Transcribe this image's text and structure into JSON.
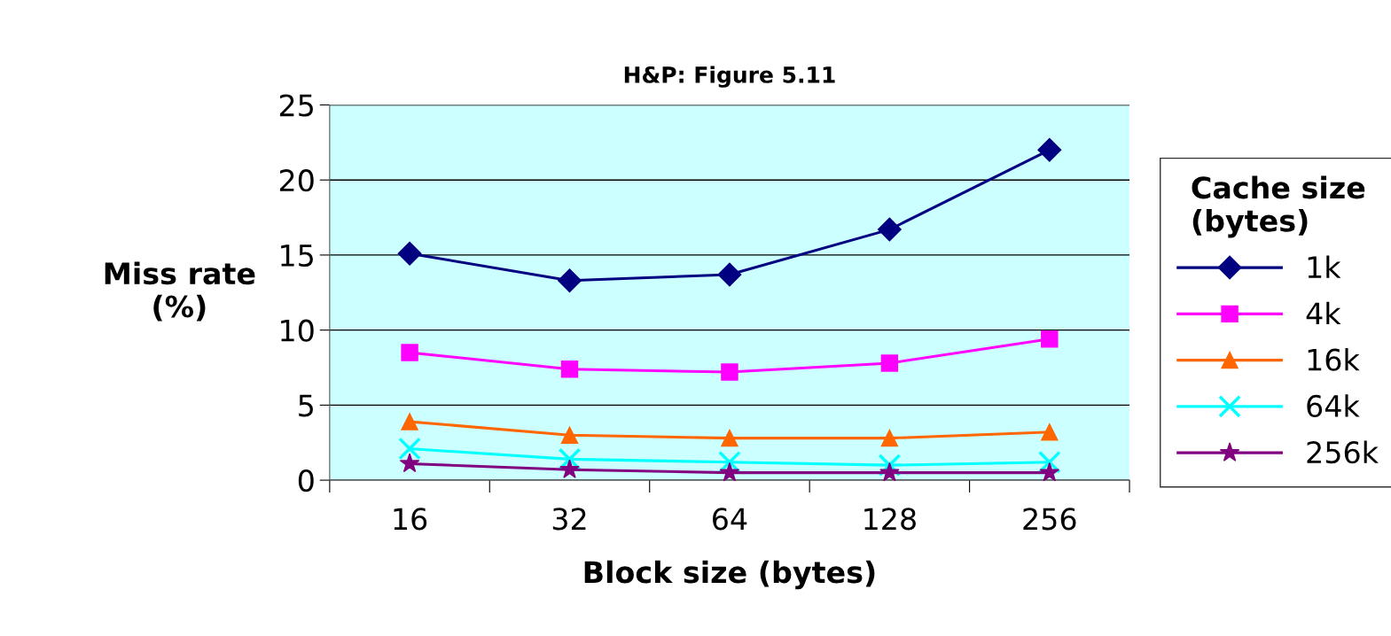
{
  "chart_data": {
    "type": "line",
    "title": "H&P: Figure 5.11",
    "xlabel": "Block size (bytes)",
    "ylabel": "Miss rate\n(%)",
    "legend_title": "Cache size\n(bytes)",
    "categories": [
      "16",
      "32",
      "64",
      "128",
      "256"
    ],
    "series": [
      {
        "name": "1k",
        "color": "#000080",
        "marker": "diamond",
        "values": [
          15.1,
          13.3,
          13.7,
          16.7,
          22.0
        ]
      },
      {
        "name": "4k",
        "color": "#ff00ff",
        "marker": "square",
        "values": [
          8.5,
          7.4,
          7.2,
          7.8,
          9.4
        ]
      },
      {
        "name": "16k",
        "color": "#ff6600",
        "marker": "triangle",
        "values": [
          3.9,
          3.0,
          2.8,
          2.8,
          3.2
        ]
      },
      {
        "name": "64k",
        "color": "#00ffff",
        "marker": "cross",
        "values": [
          2.1,
          1.4,
          1.2,
          1.0,
          1.2
        ]
      },
      {
        "name": "256k",
        "color": "#800080",
        "marker": "star",
        "values": [
          1.1,
          0.7,
          0.5,
          0.5,
          0.5
        ]
      }
    ],
    "ylim": [
      0,
      25
    ],
    "yticks": [
      0,
      5,
      10,
      15,
      20,
      25
    ],
    "grid": "y",
    "legend": "right"
  }
}
